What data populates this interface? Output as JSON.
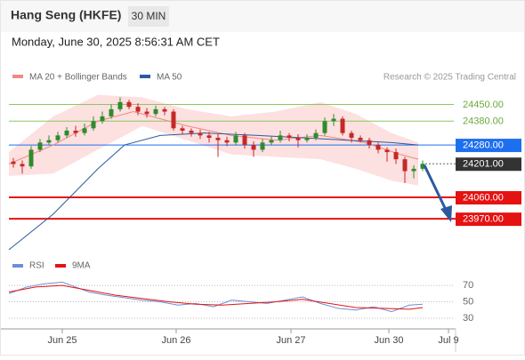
{
  "header": {
    "title": "Hang Seng (HKFE)",
    "interval": "30 MIN",
    "datetime": "Monday, June 30, 2025 8:56:31 AM CET"
  },
  "chart_data": {
    "type": "candlestick",
    "credit": "Research © 2025 Trading Central",
    "up_color": "#2e8b2e",
    "down_color": "#c62828",
    "x": [
      1,
      3,
      5,
      7,
      9,
      11,
      13,
      15,
      17,
      19,
      21,
      23,
      25,
      27,
      29,
      31,
      33,
      35,
      37,
      39,
      41,
      43,
      45,
      47,
      49,
      51,
      53,
      55,
      57,
      59,
      61,
      63,
      65,
      67,
      69,
      71,
      73,
      75,
      77,
      79,
      81,
      83,
      85,
      87,
      89,
      91,
      93
    ],
    "open": [
      24210,
      24200,
      24190,
      24260,
      24290,
      24300,
      24320,
      24340,
      24330,
      24350,
      24380,
      24400,
      24430,
      24460,
      24440,
      24420,
      24410,
      24430,
      24420,
      24350,
      24340,
      24330,
      24320,
      24310,
      24300,
      24290,
      24320,
      24280,
      24260,
      24290,
      24300,
      24320,
      24310,
      24300,
      24310,
      24330,
      24380,
      24390,
      24330,
      24310,
      24300,
      24280,
      24260,
      24250,
      24220,
      24170,
      24180
    ],
    "high": [
      24225,
      24215,
      24275,
      24305,
      24320,
      24335,
      24355,
      24360,
      24370,
      24400,
      24420,
      24450,
      24480,
      24470,
      24455,
      24435,
      24445,
      24440,
      24430,
      24360,
      24350,
      24345,
      24335,
      24325,
      24315,
      24335,
      24330,
      24295,
      24305,
      24315,
      24340,
      24330,
      24325,
      24325,
      24345,
      24395,
      24410,
      24400,
      24340,
      24320,
      24310,
      24290,
      24270,
      24265,
      24230,
      24195,
      24215
    ],
    "low": [
      24185,
      24160,
      24180,
      24250,
      24280,
      24290,
      24310,
      24315,
      24320,
      24340,
      24370,
      24390,
      24420,
      24430,
      24405,
      24395,
      24400,
      24405,
      24340,
      24325,
      24315,
      24305,
      24290,
      24230,
      24275,
      24280,
      24265,
      24230,
      24250,
      24280,
      24290,
      24295,
      24270,
      24290,
      24300,
      24320,
      24360,
      24320,
      24290,
      24290,
      24265,
      24245,
      24210,
      24200,
      24120,
      24140,
      24170
    ],
    "close": [
      24200,
      24190,
      24260,
      24290,
      24300,
      24320,
      24340,
      24330,
      24350,
      24380,
      24400,
      24430,
      24460,
      24440,
      24420,
      24410,
      24430,
      24420,
      24350,
      24340,
      24330,
      24320,
      24310,
      24300,
      24290,
      24320,
      24280,
      24260,
      24290,
      24300,
      24320,
      24310,
      24300,
      24310,
      24330,
      24380,
      24390,
      24330,
      24310,
      24300,
      24280,
      24260,
      24250,
      24220,
      24170,
      24180,
      24201
    ],
    "xlim": [
      0,
      100
    ],
    "xticks": [
      {
        "value": 12,
        "label": "Jun 25"
      },
      {
        "value": 37.6,
        "label": "Jun 26"
      },
      {
        "value": 63.4,
        "label": "Jun 27"
      },
      {
        "value": 85.4,
        "label": "Jun 30"
      },
      {
        "value": 98.8,
        "label": "Jul 9"
      }
    ],
    "ylim": [
      23825,
      24590
    ],
    "series": [
      {
        "name": "MA 20 + Bollinger Bands",
        "color": "#f08a80",
        "x": [
          0,
          10,
          20,
          28,
          40,
          50,
          60,
          70,
          80,
          88,
          92
        ],
        "values": [
          24200,
          24280,
          24380,
          24420,
          24360,
          24320,
          24300,
          24320,
          24290,
          24240,
          24220
        ]
      },
      {
        "name": "MA 50",
        "color": "#2c5aa0",
        "x": [
          0,
          10,
          20,
          26,
          34,
          44,
          56,
          66,
          76,
          86,
          92
        ],
        "values": [
          23840,
          23990,
          24180,
          24280,
          24320,
          24330,
          24320,
          24310,
          24300,
          24290,
          24280
        ]
      }
    ],
    "bands": {
      "color": "#fde0e0",
      "x": [
        0,
        10,
        20,
        30,
        40,
        50,
        60,
        70,
        78,
        86,
        92
      ],
      "upper": [
        24250,
        24400,
        24490,
        24480,
        24430,
        24400,
        24420,
        24460,
        24410,
        24330,
        24290
      ],
      "lower": [
        24150,
        24160,
        24260,
        24360,
        24300,
        24240,
        24230,
        24220,
        24180,
        24130,
        24110
      ]
    },
    "levels": {
      "values": [
        24450,
        24380,
        24280,
        24060,
        23970
      ],
      "value_labels": [
        "24450.00",
        "24380.00",
        "24280.00",
        "24060.00",
        "23970.00"
      ],
      "colors": [
        "#8cc860",
        "#8cc860",
        "#1e6ff0",
        "#e51212",
        "#e51212"
      ],
      "boxed": [
        false,
        false,
        true,
        true,
        true
      ]
    },
    "current": {
      "value": 24201,
      "label": "24201.00",
      "color": "#333333"
    },
    "rsi": {
      "ylim": [
        17,
        82
      ],
      "yticks": [
        70,
        50,
        30
      ],
      "series": [
        {
          "name": "RSI",
          "color": "#6b8fd8",
          "x": [
            0,
            4,
            8,
            12,
            14,
            18,
            22,
            26,
            30,
            34,
            38,
            42,
            46,
            50,
            54,
            58,
            62,
            66,
            70,
            74,
            78,
            82,
            86,
            90,
            93
          ],
          "values": [
            60,
            68,
            72,
            74,
            70,
            62,
            58,
            55,
            52,
            50,
            46,
            48,
            44,
            52,
            50,
            48,
            52,
            56,
            48,
            42,
            40,
            44,
            38,
            46,
            47
          ]
        },
        {
          "name": "9MA",
          "color": "#e51212",
          "x": [
            0,
            6,
            12,
            18,
            24,
            30,
            36,
            42,
            48,
            54,
            60,
            66,
            72,
            78,
            84,
            90,
            93
          ],
          "values": [
            62,
            68,
            70,
            64,
            58,
            54,
            50,
            47,
            46,
            48,
            50,
            53,
            48,
            43,
            42,
            41,
            43
          ]
        }
      ]
    }
  }
}
